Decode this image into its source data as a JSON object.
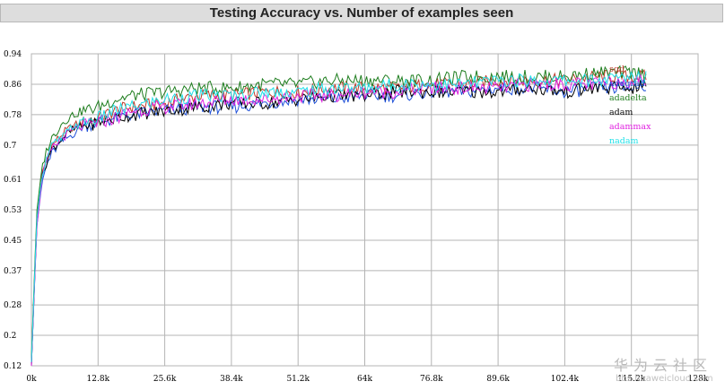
{
  "title": "Testing Accuracy vs. Number of examples seen",
  "watermark": {
    "brand": "华为云社区",
    "url": "bbs.huaweicloud.com"
  },
  "colors": {
    "sgd": "#c0392b",
    "adagrad": "#1d4fd8",
    "adadelta": "#1e7d1e",
    "adam": "#000000",
    "adammax": "#e020e0",
    "nadam": "#20e0e8"
  },
  "chart_data": {
    "type": "line",
    "title": "Testing Accuracy vs. Number of examples seen",
    "xlabel": "",
    "ylabel": "",
    "xlim": [
      0,
      128
    ],
    "ylim": [
      0.12,
      0.94
    ],
    "x_ticks": [
      0,
      12.8,
      25.6,
      38.4,
      51.2,
      64,
      76.8,
      89.6,
      102.4,
      115.2,
      128
    ],
    "x_tick_labels": [
      "0k",
      "12.8k",
      "25.6k",
      "38.4k",
      "51.2k",
      "64k",
      "76.8k",
      "89.6k",
      "102.4k",
      "115.2k",
      "128k"
    ],
    "y_ticks": [
      0.12,
      0.2,
      0.28,
      0.37,
      0.45,
      0.53,
      0.61,
      0.7,
      0.78,
      0.86,
      0.94
    ],
    "y_tick_labels": [
      "0.12",
      "0.2",
      "0.28",
      "0.37",
      "0.45",
      "0.53",
      "0.61",
      "0.7",
      "0.78",
      "0.86",
      "0.94"
    ],
    "grid": true,
    "legend_position": "right",
    "x": [
      0,
      1,
      2,
      3,
      4,
      6,
      8,
      10,
      12.8,
      16,
      19.2,
      25.6,
      32,
      38.4,
      44.8,
      51.2,
      57.6,
      64,
      70.4,
      76.8,
      83.2,
      89.6,
      96,
      102.4,
      108.8,
      115.2,
      118
    ],
    "series": [
      {
        "name": "sgd",
        "values": [
          0.13,
          0.5,
          0.62,
          0.67,
          0.7,
          0.73,
          0.75,
          0.76,
          0.77,
          0.79,
          0.8,
          0.81,
          0.83,
          0.83,
          0.84,
          0.84,
          0.85,
          0.85,
          0.85,
          0.86,
          0.86,
          0.87,
          0.87,
          0.87,
          0.88,
          0.88,
          0.88
        ]
      },
      {
        "name": "adagrad",
        "values": [
          0.12,
          0.48,
          0.6,
          0.65,
          0.68,
          0.71,
          0.73,
          0.75,
          0.76,
          0.77,
          0.78,
          0.79,
          0.8,
          0.8,
          0.81,
          0.82,
          0.82,
          0.83,
          0.83,
          0.84,
          0.84,
          0.85,
          0.85,
          0.84,
          0.85,
          0.85,
          0.86
        ]
      },
      {
        "name": "adadelta",
        "values": [
          0.14,
          0.52,
          0.64,
          0.69,
          0.72,
          0.76,
          0.78,
          0.79,
          0.8,
          0.82,
          0.83,
          0.84,
          0.85,
          0.85,
          0.86,
          0.86,
          0.87,
          0.87,
          0.87,
          0.87,
          0.88,
          0.88,
          0.88,
          0.88,
          0.89,
          0.89,
          0.89
        ]
      },
      {
        "name": "adam",
        "values": [
          0.12,
          0.49,
          0.61,
          0.66,
          0.69,
          0.72,
          0.74,
          0.75,
          0.76,
          0.77,
          0.78,
          0.79,
          0.8,
          0.81,
          0.81,
          0.82,
          0.83,
          0.83,
          0.84,
          0.84,
          0.84,
          0.84,
          0.85,
          0.84,
          0.85,
          0.85,
          0.86
        ]
      },
      {
        "name": "adammax",
        "values": [
          0.12,
          0.48,
          0.61,
          0.66,
          0.69,
          0.72,
          0.74,
          0.75,
          0.76,
          0.77,
          0.79,
          0.8,
          0.81,
          0.82,
          0.82,
          0.83,
          0.83,
          0.84,
          0.84,
          0.85,
          0.85,
          0.85,
          0.86,
          0.86,
          0.86,
          0.87,
          0.87
        ]
      },
      {
        "name": "nadam",
        "values": [
          0.13,
          0.5,
          0.62,
          0.67,
          0.7,
          0.72,
          0.75,
          0.76,
          0.77,
          0.79,
          0.8,
          0.82,
          0.83,
          0.83,
          0.84,
          0.84,
          0.85,
          0.85,
          0.86,
          0.86,
          0.86,
          0.87,
          0.87,
          0.87,
          0.87,
          0.88,
          0.88
        ]
      }
    ]
  }
}
